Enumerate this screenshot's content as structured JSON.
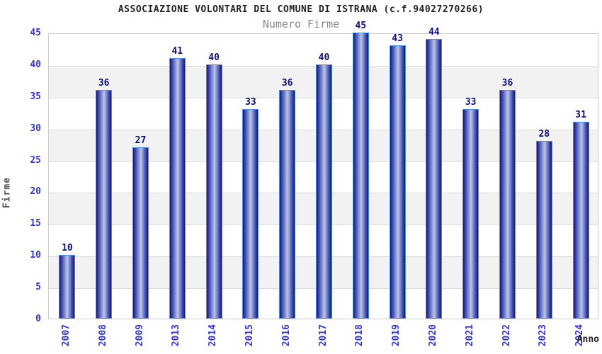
{
  "header": {
    "title": "ASSOCIAZIONE VOLONTARI DEL COMUNE DI ISTRANA (c.f.94027270266)",
    "subtitle": "Numero Firme"
  },
  "chart_data": {
    "type": "bar",
    "title": "ASSOCIAZIONE VOLONTARI DEL COMUNE DI ISTRANA (c.f.94027270266)",
    "subtitle": "Numero Firme",
    "xlabel": "Anno",
    "ylabel": "Firme",
    "categories": [
      "2007",
      "2008",
      "2009",
      "2013",
      "2014",
      "2015",
      "2016",
      "2017",
      "2018",
      "2019",
      "2020",
      "2021",
      "2022",
      "2023",
      "2024"
    ],
    "values": [
      10,
      36,
      27,
      41,
      40,
      33,
      36,
      40,
      45,
      43,
      44,
      33,
      36,
      28,
      31
    ],
    "ylim": [
      0,
      45
    ],
    "yticks": [
      0,
      5,
      10,
      15,
      20,
      25,
      30,
      35,
      40,
      45
    ],
    "gray_bands": [
      [
        5,
        10
      ],
      [
        15,
        20
      ],
      [
        25,
        30
      ],
      [
        35,
        40
      ]
    ],
    "legend_position": "none",
    "grid": "horizontal",
    "colors": {
      "bar_edge_dark": "#17176e",
      "bar_mid": "#3d4dae",
      "bar_center_light": "#bcc5ea",
      "bar_border": "#4d8ceb",
      "axis_tick_text": "#3434dd",
      "value_label_text": "#0f0f82",
      "band_fill": "#f2f2f2",
      "gridline": "#dcdcdc",
      "plot_border": "#cccccc",
      "title_text": "#222222",
      "subtitle_text": "#888888",
      "ylabel_text": "#555555",
      "xlabel_text": "#222222"
    }
  }
}
